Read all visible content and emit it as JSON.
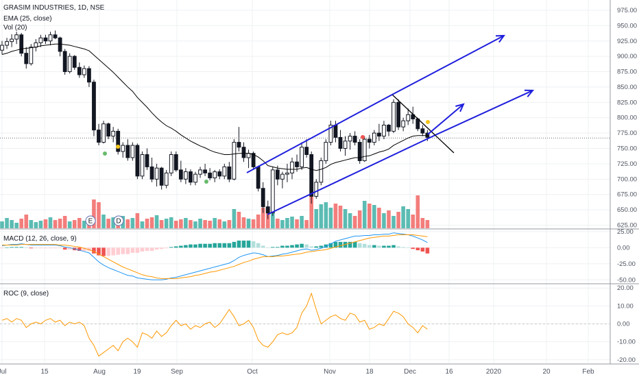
{
  "chart_data": {
    "type": "candlestick",
    "title": "GRASIM INDUSTRIES, 1D, NSE",
    "indicator_labels": {
      "ema": "EMA (25, close)",
      "vol": "Vol (20)",
      "macd": "MACD (12, 26, close, 9)",
      "roc": "ROC (9, close)"
    },
    "x_ticks": [
      "Jul",
      "15",
      "Aug",
      "19",
      "Sep",
      "Oct",
      "Nov",
      "18",
      "Dec",
      "16",
      "2020",
      "20",
      "Feb"
    ],
    "price_axis": {
      "ticks": [
        "975.00",
        "950.00",
        "925.00",
        "900.00",
        "875.00",
        "850.00",
        "825.00",
        "800.00",
        "775.00",
        "750.00",
        "725.00",
        "700.00",
        "675.00",
        "650.00",
        "625.00"
      ],
      "range": [
        620,
        985
      ],
      "current_price_line": 767
    },
    "macd_axis": {
      "ticks": [
        "25.00",
        "0.00",
        "-25.00",
        "-50.00"
      ],
      "range": [
        -55,
        28
      ]
    },
    "roc_axis": {
      "ticks": [
        "20.00",
        "10.00",
        "0.00",
        "-10.00",
        "-20.00"
      ],
      "range": [
        -22,
        22
      ]
    },
    "event_markers": [
      "E",
      "D"
    ],
    "series": [
      {
        "name": "Price",
        "color_up": "#26a69a",
        "color_down": "#ef5350",
        "wick": "#000000",
        "values": [
          [
            910,
            925,
            903,
            918
          ],
          [
            918,
            930,
            912,
            924
          ],
          [
            924,
            936,
            915,
            928
          ],
          [
            928,
            940,
            920,
            935
          ],
          [
            935,
            938,
            900,
            905
          ],
          [
            905,
            915,
            880,
            888
          ],
          [
            888,
            920,
            885,
            915
          ],
          [
            915,
            928,
            908,
            922
          ],
          [
            922,
            935,
            915,
            930
          ],
          [
            930,
            935,
            920,
            925
          ],
          [
            925,
            940,
            918,
            935
          ],
          [
            935,
            942,
            928,
            930
          ],
          [
            930,
            932,
            900,
            908
          ],
          [
            908,
            912,
            870,
            875
          ],
          [
            875,
            905,
            872,
            900
          ],
          [
            900,
            902,
            878,
            882
          ],
          [
            882,
            890,
            865,
            870
          ],
          [
            870,
            885,
            865,
            880
          ],
          [
            880,
            884,
            850,
            858
          ],
          [
            858,
            862,
            770,
            780
          ],
          [
            780,
            790,
            755,
            760
          ],
          [
            760,
            795,
            758,
            790
          ],
          [
            790,
            792,
            765,
            770
          ],
          [
            770,
            785,
            760,
            778
          ],
          [
            778,
            782,
            740,
            745
          ],
          [
            745,
            760,
            735,
            755
          ],
          [
            755,
            765,
            730,
            735
          ],
          [
            735,
            760,
            730,
            755
          ],
          [
            755,
            758,
            700,
            705
          ],
          [
            705,
            745,
            700,
            740
          ],
          [
            740,
            750,
            715,
            720
          ],
          [
            720,
            735,
            695,
            700
          ],
          [
            700,
            725,
            688,
            718
          ],
          [
            718,
            720,
            683,
            690
          ],
          [
            690,
            715,
            685,
            710
          ],
          [
            710,
            745,
            705,
            740
          ],
          [
            740,
            745,
            712,
            715
          ],
          [
            715,
            730,
            695,
            700
          ],
          [
            700,
            718,
            692,
            712
          ],
          [
            712,
            716,
            690,
            695
          ],
          [
            695,
            712,
            690,
            708
          ],
          [
            708,
            720,
            702,
            715
          ],
          [
            715,
            725,
            705,
            710
          ],
          [
            710,
            718,
            698,
            702
          ],
          [
            702,
            715,
            695,
            712
          ],
          [
            712,
            716,
            700,
            705
          ],
          [
            705,
            725,
            700,
            720
          ],
          [
            720,
            728,
            695,
            700
          ],
          [
            700,
            765,
            698,
            760
          ],
          [
            760,
            785,
            745,
            752
          ],
          [
            752,
            760,
            728,
            735
          ],
          [
            735,
            748,
            718,
            742
          ],
          [
            742,
            745,
            715,
            720
          ],
          [
            720,
            722,
            680,
            685
          ],
          [
            685,
            695,
            645,
            655
          ],
          [
            655,
            665,
            635,
            645
          ],
          [
            645,
            720,
            640,
            715
          ],
          [
            715,
            722,
            690,
            700
          ],
          [
            700,
            712,
            685,
            708
          ],
          [
            708,
            725,
            695,
            710
          ],
          [
            710,
            735,
            700,
            728
          ],
          [
            728,
            740,
            712,
            720
          ],
          [
            720,
            760,
            715,
            752
          ],
          [
            752,
            765,
            735,
            740
          ],
          [
            740,
            745,
            660,
            672
          ],
          [
            672,
            700,
            668,
            695
          ],
          [
            695,
            735,
            690,
            730
          ],
          [
            730,
            765,
            725,
            760
          ],
          [
            760,
            795,
            755,
            788
          ],
          [
            788,
            795,
            760,
            768
          ],
          [
            768,
            780,
            745,
            750
          ],
          [
            750,
            770,
            738,
            762
          ],
          [
            762,
            775,
            748,
            770
          ],
          [
            770,
            778,
            755,
            760
          ],
          [
            760,
            765,
            725,
            730
          ],
          [
            730,
            770,
            728,
            765
          ],
          [
            765,
            772,
            750,
            760
          ],
          [
            760,
            780,
            755,
            775
          ],
          [
            775,
            790,
            762,
            770
          ],
          [
            770,
            795,
            765,
            788
          ],
          [
            788,
            790,
            770,
            778
          ],
          [
            778,
            830,
            775,
            825
          ],
          [
            825,
            830,
            780,
            785
          ],
          [
            785,
            800,
            778,
            795
          ],
          [
            795,
            815,
            788,
            805
          ],
          [
            805,
            818,
            790,
            798
          ],
          [
            798,
            800,
            778,
            782
          ],
          [
            782,
            788,
            770,
            775
          ],
          [
            775,
            780,
            762,
            768
          ]
        ]
      },
      {
        "name": "EMA (25, close)",
        "color": "#000000",
        "values": [
          903,
          905,
          908,
          910,
          912,
          913,
          914,
          915,
          917,
          918,
          919,
          920,
          920,
          919,
          918,
          916,
          914,
          912,
          909,
          902,
          895,
          888,
          881,
          874,
          866,
          858,
          850,
          843,
          833,
          825,
          817,
          808,
          800,
          793,
          787,
          783,
          778,
          772,
          767,
          762,
          758,
          754,
          751,
          747,
          744,
          742,
          740,
          740,
          741,
          742,
          742,
          742,
          740,
          736,
          730,
          722,
          720,
          718,
          717,
          716,
          716,
          716,
          718,
          719,
          716,
          714,
          716,
          719,
          724,
          727,
          729,
          731,
          733,
          735,
          735,
          737,
          738,
          741,
          744,
          746,
          749,
          755,
          759,
          763,
          767,
          770,
          771,
          771,
          771
        ]
      },
      {
        "name": "Vol (20)",
        "values": [
          10,
          15,
          12,
          8,
          14,
          20,
          12,
          9,
          11,
          13,
          16,
          12,
          14,
          18,
          10,
          12,
          15,
          11,
          13,
          42,
          38,
          20,
          14,
          16,
          12,
          18,
          13,
          15,
          22,
          10,
          14,
          16,
          19,
          12,
          14,
          16,
          11,
          13,
          15,
          12,
          10,
          14,
          12,
          11,
          15,
          13,
          10,
          12,
          28,
          24,
          16,
          14,
          13,
          20,
          30,
          25,
          32,
          14,
          12,
          15,
          17,
          13,
          18,
          12,
          62,
          28,
          35,
          38,
          30,
          36,
          33,
          28,
          22,
          18,
          26,
          40,
          36,
          34,
          30,
          22,
          26,
          18,
          24,
          32,
          28,
          20,
          48,
          15,
          12
        ]
      },
      {
        "name": "MACD (12, 26, close, 9)",
        "color": "#2196f3",
        "values": [
          3,
          4,
          5,
          5,
          6,
          5,
          4,
          4,
          4,
          4,
          4,
          4,
          3,
          1,
          0,
          -2,
          -4,
          -6,
          -8,
          -15,
          -22,
          -27,
          -31,
          -34,
          -37,
          -40,
          -43,
          -44,
          -47,
          -48,
          -49,
          -50,
          -50,
          -50,
          -49,
          -47,
          -46,
          -44,
          -42,
          -40,
          -38,
          -36,
          -34,
          -32,
          -30,
          -28,
          -26,
          -24,
          -20,
          -15,
          -12,
          -10,
          -8,
          -9,
          -11,
          -14,
          -13,
          -12,
          -10,
          -9,
          -7,
          -5,
          -3,
          -2,
          -4,
          -3,
          -1,
          2,
          6,
          10,
          12,
          14,
          16,
          18,
          18,
          19,
          19,
          20,
          20,
          21,
          21,
          23,
          22,
          21,
          20,
          18,
          15,
          12,
          8
        ]
      },
      {
        "name": "Signal",
        "color": "#ff9800",
        "values": [
          4,
          4,
          4,
          4,
          5,
          5,
          5,
          5,
          5,
          5,
          5,
          5,
          4,
          4,
          3,
          2,
          1,
          -1,
          -3,
          -6,
          -10,
          -14,
          -18,
          -22,
          -26,
          -30,
          -33,
          -36,
          -39,
          -42,
          -44,
          -45,
          -47,
          -48,
          -48,
          -48,
          -48,
          -47,
          -46,
          -45,
          -43,
          -42,
          -40,
          -38,
          -37,
          -35,
          -33,
          -31,
          -29,
          -26,
          -23,
          -21,
          -18,
          -16,
          -14,
          -14,
          -14,
          -13,
          -13,
          -12,
          -11,
          -10,
          -9,
          -7,
          -6,
          -5,
          -4,
          -3,
          -1,
          1,
          3,
          5,
          7,
          9,
          11,
          13,
          15,
          16,
          17,
          18,
          18,
          19,
          20,
          20,
          20,
          20,
          19,
          18,
          17
        ]
      },
      {
        "name": "ROC (9, close)",
        "color": "#ff9800",
        "values": [
          2,
          3,
          1,
          3,
          2,
          -2,
          0,
          1,
          0,
          2,
          3,
          1,
          2,
          -1,
          1,
          0,
          1,
          -1,
          -8,
          -12,
          -18,
          -16,
          -14,
          -12,
          -15,
          -10,
          -8,
          -10,
          -13,
          -5,
          -6,
          -8,
          -4,
          -7,
          -5,
          -1,
          2,
          -1,
          0,
          -3,
          -1,
          -2,
          0,
          1,
          -2,
          0,
          4,
          8,
          4,
          -1,
          0,
          2,
          -2,
          -9,
          -12,
          -13,
          -10,
          -6,
          -5,
          -6,
          -5,
          -2,
          6,
          10,
          17,
          8,
          0,
          2,
          4,
          5,
          3,
          2,
          6,
          5,
          1,
          2,
          -3,
          -2,
          0,
          -1,
          3,
          7,
          6,
          4,
          0,
          -2,
          -5,
          -1,
          -3
        ]
      }
    ],
    "drawings": [
      "up-channel-upper",
      "up-channel-lower",
      "trendline",
      "projection-arrow-1",
      "projection-arrow-2",
      "projection-arrow-3"
    ]
  }
}
